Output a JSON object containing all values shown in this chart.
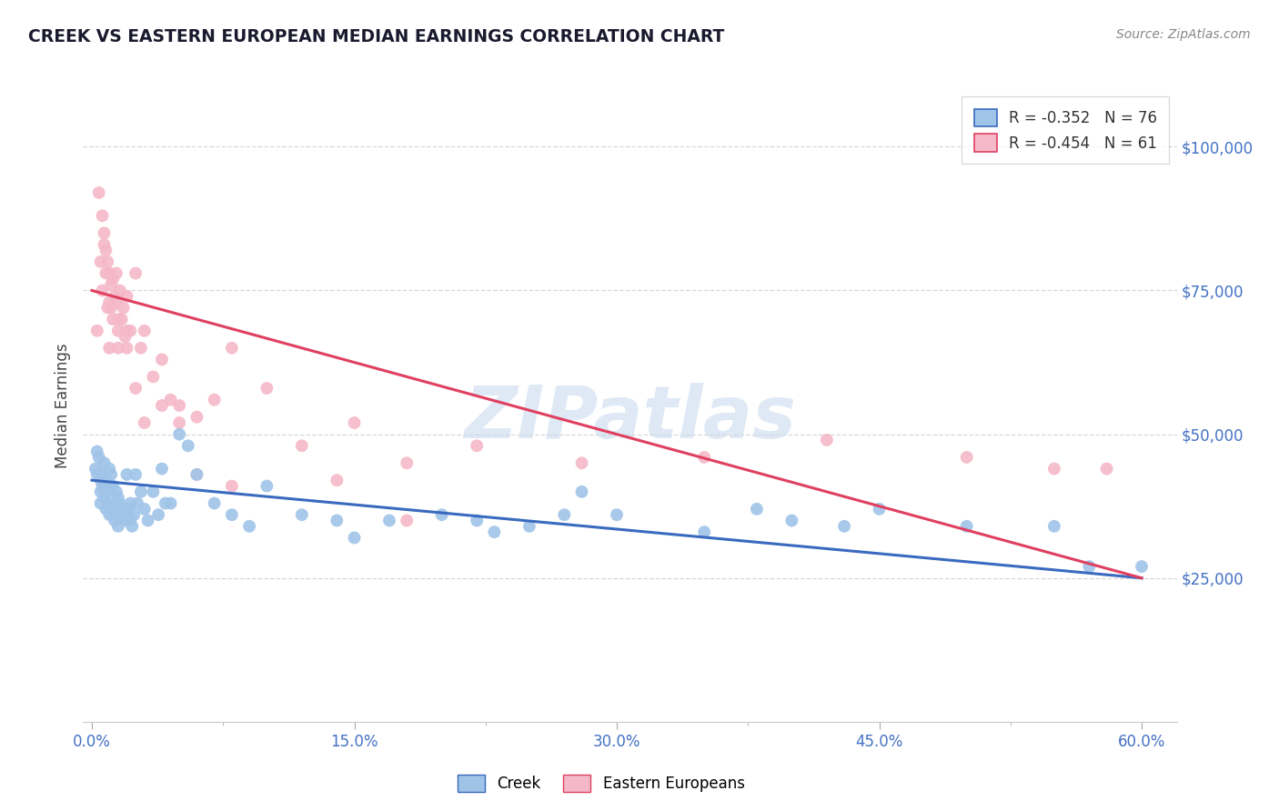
{
  "title": "CREEK VS EASTERN EUROPEAN MEDIAN EARNINGS CORRELATION CHART",
  "source": "Source: ZipAtlas.com",
  "ylabel": "Median Earnings",
  "yticks": [
    0,
    25000,
    50000,
    75000,
    100000
  ],
  "ytick_labels": [
    "",
    "$25,000",
    "$50,000",
    "$75,000",
    "$100,000"
  ],
  "ylim_max": 110000,
  "xlim_min": -0.5,
  "xlim_max": 62,
  "xtick_values": [
    0.0,
    7.5,
    15.0,
    22.5,
    30.0,
    37.5,
    45.0,
    52.5,
    60.0
  ],
  "xtick_labels": [
    "0.0%",
    "",
    "15.0%",
    "",
    "30.0%",
    "",
    "45.0%",
    "",
    "60.0%"
  ],
  "bg_color": "#ffffff",
  "grid_color": "#d8d8d8",
  "watermark": "ZIPatlas",
  "creek_dot_color": "#a0c4e8",
  "eastern_dot_color": "#f5b8c8",
  "creek_line_color": "#3a6abf",
  "eastern_line_color": "#e04060",
  "creek_R": "-0.352",
  "creek_N": "76",
  "eastern_R": "-0.454",
  "eastern_N": "61",
  "creek_line_x0": 0.0,
  "creek_line_y0": 42000,
  "creek_line_x1": 60.0,
  "creek_line_y1": 25000,
  "eastern_line_x0": 0.0,
  "eastern_line_y0": 75000,
  "eastern_line_x1": 60.0,
  "eastern_line_y1": 25000,
  "creek_x": [
    0.2,
    0.3,
    0.3,
    0.4,
    0.5,
    0.5,
    0.5,
    0.6,
    0.6,
    0.7,
    0.7,
    0.8,
    0.8,
    0.9,
    0.9,
    1.0,
    1.0,
    1.0,
    1.1,
    1.1,
    1.2,
    1.2,
    1.3,
    1.3,
    1.4,
    1.4,
    1.5,
    1.5,
    1.6,
    1.7,
    1.8,
    1.9,
    2.0,
    2.0,
    2.1,
    2.2,
    2.2,
    2.3,
    2.4,
    2.5,
    2.6,
    2.8,
    3.0,
    3.2,
    3.5,
    3.8,
    4.0,
    4.2,
    4.5,
    5.0,
    5.5,
    6.0,
    7.0,
    8.0,
    9.0,
    10.0,
    12.0,
    14.0,
    15.0,
    17.0,
    20.0,
    22.0,
    23.0,
    25.0,
    27.0,
    28.0,
    30.0,
    35.0,
    38.0,
    40.0,
    43.0,
    45.0,
    50.0,
    55.0,
    57.0,
    60.0
  ],
  "creek_y": [
    44000,
    47000,
    43000,
    46000,
    40000,
    42000,
    38000,
    43000,
    41000,
    45000,
    39000,
    42000,
    37000,
    40000,
    38000,
    44000,
    41000,
    36000,
    43000,
    38000,
    41000,
    36000,
    38000,
    35000,
    40000,
    37000,
    39000,
    34000,
    38000,
    37000,
    36000,
    35000,
    43000,
    37000,
    36000,
    38000,
    35000,
    34000,
    36000,
    43000,
    38000,
    40000,
    37000,
    35000,
    40000,
    36000,
    44000,
    38000,
    38000,
    50000,
    48000,
    43000,
    38000,
    36000,
    34000,
    41000,
    36000,
    35000,
    32000,
    35000,
    36000,
    35000,
    33000,
    34000,
    36000,
    40000,
    36000,
    33000,
    37000,
    35000,
    34000,
    37000,
    34000,
    34000,
    27000,
    27000
  ],
  "eastern_x": [
    0.3,
    0.4,
    0.5,
    0.6,
    0.6,
    0.7,
    0.7,
    0.8,
    0.8,
    0.9,
    0.9,
    1.0,
    1.0,
    1.1,
    1.1,
    1.2,
    1.2,
    1.3,
    1.4,
    1.4,
    1.5,
    1.5,
    1.6,
    1.7,
    1.8,
    1.9,
    2.0,
    2.0,
    2.2,
    2.5,
    2.8,
    3.0,
    3.5,
    4.0,
    4.5,
    5.0,
    6.0,
    7.0,
    8.0,
    10.0,
    12.0,
    15.0,
    18.0,
    22.0,
    28.0,
    35.0,
    42.0,
    50.0,
    55.0,
    58.0,
    1.0,
    1.5,
    2.0,
    2.5,
    3.0,
    4.0,
    5.0,
    6.0,
    8.0,
    14.0,
    18.0
  ],
  "eastern_y": [
    68000,
    92000,
    80000,
    88000,
    75000,
    85000,
    83000,
    82000,
    78000,
    80000,
    72000,
    78000,
    65000,
    76000,
    72000,
    77000,
    70000,
    74000,
    78000,
    73000,
    68000,
    65000,
    75000,
    70000,
    72000,
    67000,
    74000,
    65000,
    68000,
    78000,
    65000,
    68000,
    60000,
    63000,
    56000,
    55000,
    53000,
    56000,
    65000,
    58000,
    48000,
    52000,
    45000,
    48000,
    45000,
    46000,
    49000,
    46000,
    44000,
    44000,
    73000,
    70000,
    68000,
    58000,
    52000,
    55000,
    52000,
    43000,
    41000,
    42000,
    35000
  ]
}
